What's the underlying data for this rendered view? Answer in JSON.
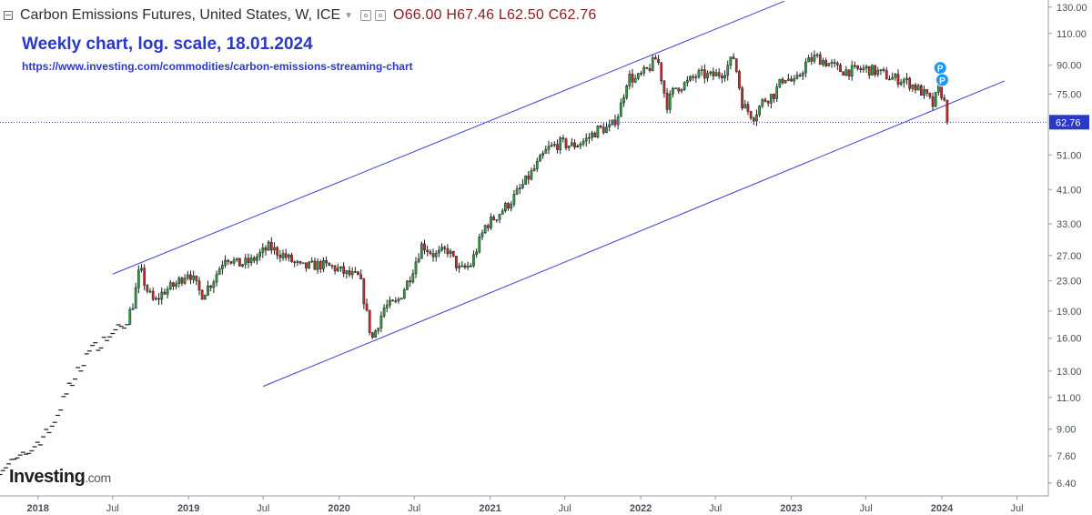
{
  "header": {
    "instrument": "Carbon Emissions Futures, United States, W, ICE",
    "open": "O66.00",
    "high": "H67.46",
    "low": "L62.50",
    "close": "C62.76"
  },
  "annotation": {
    "title": "Weekly chart, log. scale, 18.01.2024",
    "url": "https://www.investing.com/commodities/carbon-emissions-streaming-chart"
  },
  "logo": {
    "brand": "Investing",
    "domain": ".com"
  },
  "current_price_label": "62.76",
  "colors": {
    "up": "#2ea043",
    "down": "#cc2a2a",
    "channel": "#3b3fd1",
    "price_line": "#3b3fd1",
    "label_bg": "#2a38c8"
  },
  "chart_data": {
    "type": "candlestick",
    "scale": "log",
    "y_ticks": [
      "130.00",
      "110.00",
      "90.00",
      "75.00",
      "62.76",
      "51.00",
      "41.00",
      "33.00",
      "27.00",
      "23.00",
      "19.00",
      "16.00",
      "13.00",
      "11.00",
      "9.00",
      "7.60",
      "6.40"
    ],
    "x_ticks": [
      "2018",
      "Jul",
      "2019",
      "Jul",
      "2020",
      "Jul",
      "2021",
      "Jul",
      "2022",
      "Jul",
      "2023",
      "Jul",
      "2024",
      "Jul"
    ],
    "ylim": [
      5.9,
      136
    ],
    "xlim": [
      "2017-10-01",
      "2024-09-15"
    ],
    "last_price": 62.76,
    "channel_lines": [
      {
        "name": "upper",
        "start": [
          "2018-07-01",
          24.0
        ],
        "end": [
          "2022-12-15",
          135.0
        ]
      },
      {
        "name": "lower",
        "start": [
          "2019-07-01",
          11.8
        ],
        "end": [
          "2024-06-01",
          81.5
        ]
      }
    ],
    "anchors": [
      [
        "2017-10-01",
        7.0
      ],
      [
        "2017-12-01",
        7.6
      ],
      [
        "2018-02-01",
        9.0
      ],
      [
        "2018-03-15",
        11.5
      ],
      [
        "2018-05-01",
        14.5
      ],
      [
        "2018-06-15",
        16.0
      ],
      [
        "2018-08-01",
        17.5
      ],
      [
        "2018-08-20",
        20.0
      ],
      [
        "2018-09-05",
        25.0
      ],
      [
        "2018-09-20",
        22.0
      ],
      [
        "2018-10-10",
        20.0
      ],
      [
        "2018-11-01",
        21.5
      ],
      [
        "2018-12-01",
        22.5
      ],
      [
        "2019-01-01",
        24.5
      ],
      [
        "2019-02-01",
        21.0
      ],
      [
        "2019-03-01",
        23.0
      ],
      [
        "2019-04-01",
        27.0
      ],
      [
        "2019-05-01",
        25.5
      ],
      [
        "2019-06-01",
        26.0
      ],
      [
        "2019-07-15",
        28.5
      ],
      [
        "2019-08-20",
        27.0
      ],
      [
        "2019-10-01",
        25.0
      ],
      [
        "2019-11-15",
        25.5
      ],
      [
        "2019-12-20",
        25.0
      ],
      [
        "2020-01-20",
        24.0
      ],
      [
        "2020-02-20",
        23.5
      ],
      [
        "2020-03-20",
        15.8
      ],
      [
        "2020-04-20",
        19.5
      ],
      [
        "2020-05-20",
        20.0
      ],
      [
        "2020-06-20",
        23.5
      ],
      [
        "2020-07-20",
        29.0
      ],
      [
        "2020-08-20",
        27.0
      ],
      [
        "2020-09-20",
        28.0
      ],
      [
        "2020-10-20",
        24.5
      ],
      [
        "2020-11-15",
        25.5
      ],
      [
        "2020-12-20",
        32.5
      ],
      [
        "2021-01-20",
        35.0
      ],
      [
        "2021-02-20",
        38.0
      ],
      [
        "2021-03-20",
        42.0
      ],
      [
        "2021-04-20",
        47.0
      ],
      [
        "2021-05-20",
        53.0
      ],
      [
        "2021-06-20",
        55.0
      ],
      [
        "2021-07-20",
        54.0
      ],
      [
        "2021-08-20",
        56.0
      ],
      [
        "2021-09-20",
        60.0
      ],
      [
        "2021-10-20",
        60.5
      ],
      [
        "2021-11-10",
        67.0
      ],
      [
        "2021-12-01",
        84.0
      ],
      [
        "2021-12-20",
        82.0
      ],
      [
        "2022-01-20",
        88.0
      ],
      [
        "2022-02-10",
        95.0
      ],
      [
        "2022-03-05",
        70.0
      ],
      [
        "2022-03-25",
        78.0
      ],
      [
        "2022-04-20",
        80.0
      ],
      [
        "2022-05-20",
        85.0
      ],
      [
        "2022-06-20",
        84.0
      ],
      [
        "2022-07-20",
        86.0
      ],
      [
        "2022-08-15",
        95.0
      ],
      [
        "2022-09-05",
        70.0
      ],
      [
        "2022-10-01",
        65.0
      ],
      [
        "2022-10-25",
        72.0
      ],
      [
        "2022-11-20",
        75.0
      ],
      [
        "2022-12-15",
        84.0
      ],
      [
        "2023-01-10",
        80.0
      ],
      [
        "2023-02-05",
        91.0
      ],
      [
        "2023-03-01",
        95.0
      ],
      [
        "2023-04-01",
        91.0
      ],
      [
        "2023-05-01",
        87.0
      ],
      [
        "2023-06-01",
        87.0
      ],
      [
        "2023-07-01",
        88.0
      ],
      [
        "2023-08-01",
        86.0
      ],
      [
        "2023-09-01",
        83.0
      ],
      [
        "2023-10-01",
        82.0
      ],
      [
        "2023-11-01",
        78.0
      ],
      [
        "2023-11-25",
        74.0
      ],
      [
        "2023-12-10",
        70.0
      ],
      [
        "2023-12-25",
        78.0
      ],
      [
        "2024-01-05",
        73.0
      ],
      [
        "2024-01-12",
        66.0
      ],
      [
        "2024-01-18",
        62.76
      ]
    ],
    "pivot_markers": [
      {
        "label": "P",
        "date": "2023-12-28",
        "value": 88.5
      },
      {
        "label": "P",
        "date": "2024-01-02",
        "value": 82.0
      }
    ]
  }
}
